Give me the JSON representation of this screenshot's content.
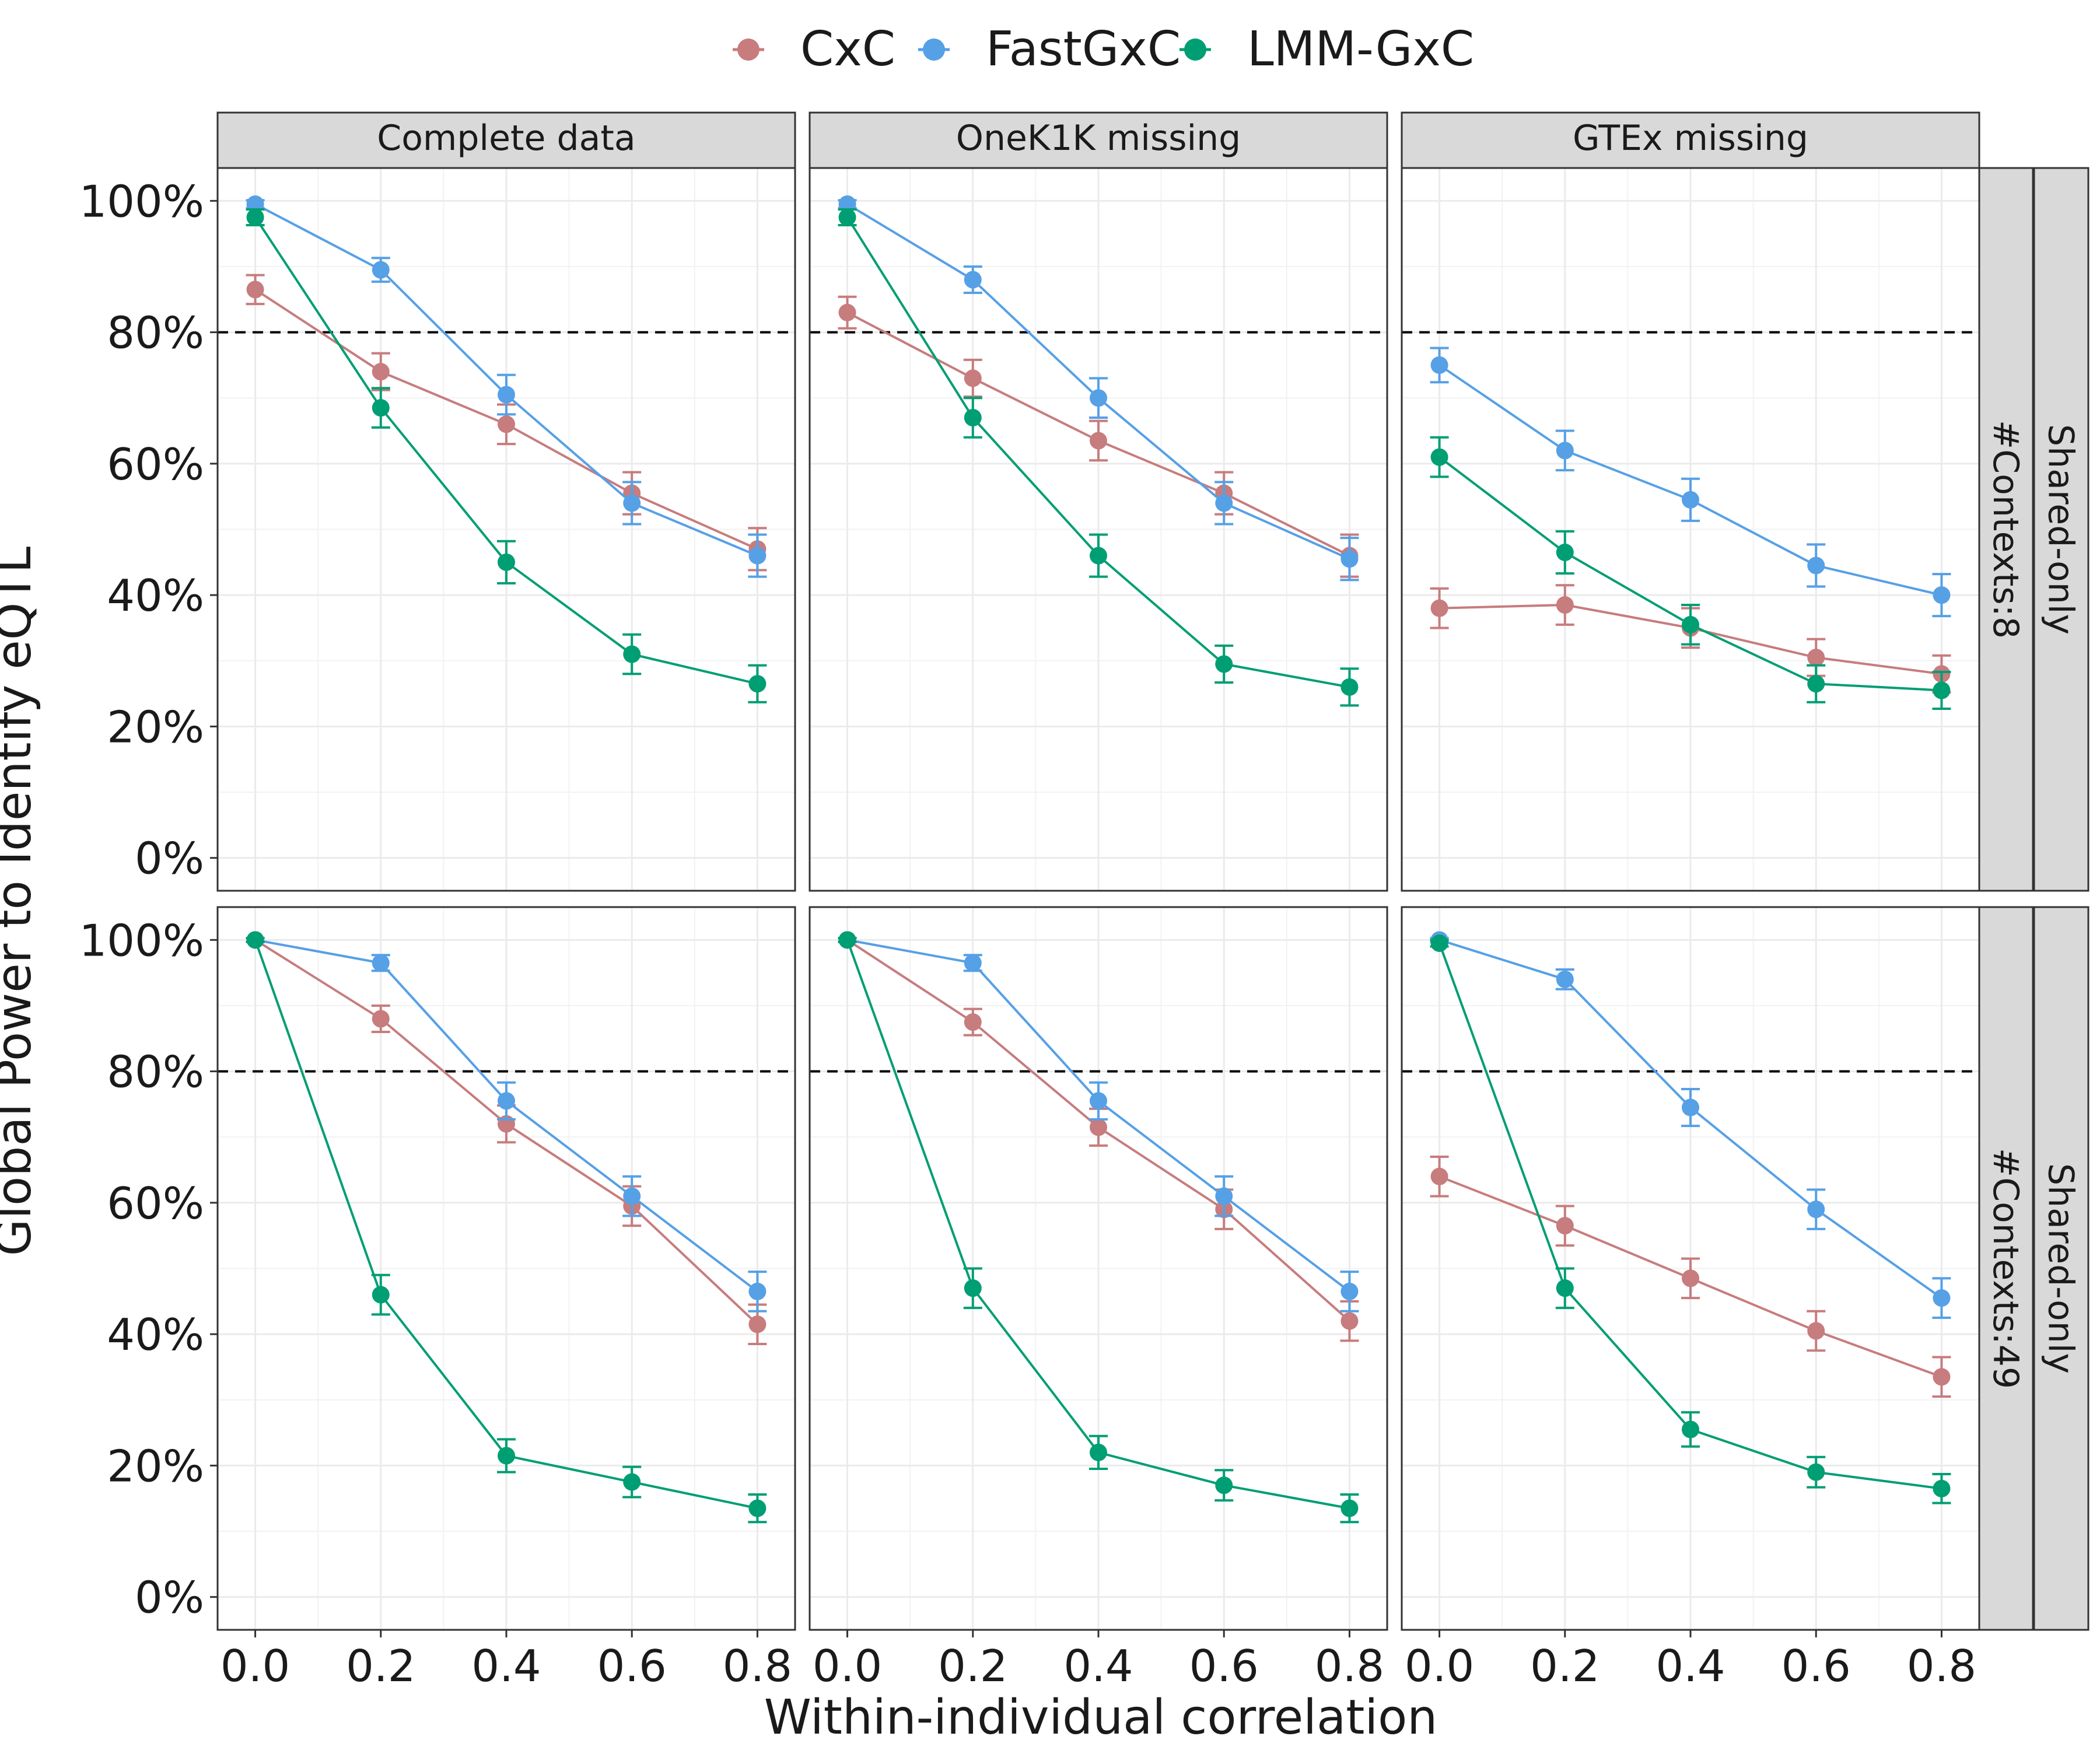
{
  "chart_data": {
    "type": "line",
    "xlabel": "Within-individual correlation",
    "ylabel": "Global Power to Identify eQTL",
    "x": [
      0.0,
      0.2,
      0.4,
      0.6,
      0.8
    ],
    "x_tick_labels": [
      "0.0",
      "0.2",
      "0.4",
      "0.6",
      "0.8"
    ],
    "y_tick_labels": [
      "0%",
      "20%",
      "40%",
      "60%",
      "80%",
      "100%"
    ],
    "y_ticks": [
      0,
      20,
      40,
      60,
      80,
      100
    ],
    "ylim": [
      -5,
      105
    ],
    "xlim": [
      -0.06,
      0.86
    ],
    "reference_line": 80,
    "grid": true,
    "legend_position": "top",
    "legend": [
      {
        "name": "CxC",
        "color": "#C77C7D"
      },
      {
        "name": "FastGxC",
        "color": "#56A0E6"
      },
      {
        "name": "LMM-GxC",
        "color": "#009E73"
      }
    ],
    "columns": [
      "Complete data",
      "OneK1K missing",
      "GTEx missing"
    ],
    "rows": [
      {
        "label_inner": "#Contexts:8",
        "label_outer": "Shared-only"
      },
      {
        "label_inner": "#Contexts:49",
        "label_outer": "Shared-only"
      }
    ],
    "panels": [
      {
        "row": 0,
        "col": 0,
        "series": [
          {
            "name": "CxC",
            "values": [
              86.5,
              74,
              66,
              55.5,
              47
            ],
            "err": [
              2.2,
              2.8,
              3,
              3.2,
              3.2
            ]
          },
          {
            "name": "FastGxC",
            "values": [
              99.5,
              89.5,
              70.5,
              54,
              46
            ],
            "err": [
              0.6,
              1.8,
              3,
              3.2,
              3.2
            ]
          },
          {
            "name": "LMM-GxC",
            "values": [
              97.5,
              68.5,
              45,
              31,
              26.5
            ],
            "err": [
              1.2,
              3,
              3.2,
              3,
              2.8
            ]
          }
        ]
      },
      {
        "row": 0,
        "col": 1,
        "series": [
          {
            "name": "CxC",
            "values": [
              83,
              73,
              63.5,
              55.5,
              46
            ],
            "err": [
              2.4,
              2.8,
              3,
              3.2,
              3.2
            ]
          },
          {
            "name": "FastGxC",
            "values": [
              99.5,
              88,
              70,
              54,
              45.5
            ],
            "err": [
              0.6,
              2,
              3,
              3.2,
              3.2
            ]
          },
          {
            "name": "LMM-GxC",
            "values": [
              97.5,
              67,
              46,
              29.5,
              26
            ],
            "err": [
              1.2,
              3,
              3.2,
              2.8,
              2.8
            ]
          }
        ]
      },
      {
        "row": 0,
        "col": 2,
        "series": [
          {
            "name": "CxC",
            "values": [
              38,
              38.5,
              35,
              30.5,
              28
            ],
            "err": [
              3,
              3,
              3,
              2.8,
              2.8
            ]
          },
          {
            "name": "FastGxC",
            "values": [
              75,
              62,
              54.5,
              44.5,
              40
            ],
            "err": [
              2.6,
              3,
              3.2,
              3.2,
              3.2
            ]
          },
          {
            "name": "LMM-GxC",
            "values": [
              61,
              46.5,
              35.5,
              26.5,
              25.5
            ],
            "err": [
              3,
              3.2,
              3,
              2.8,
              2.8
            ]
          }
        ]
      },
      {
        "row": 1,
        "col": 0,
        "series": [
          {
            "name": "CxC",
            "values": [
              100,
              88,
              72,
              59.5,
              41.5
            ],
            "err": [
              0.3,
              2,
              2.8,
              3,
              3
            ]
          },
          {
            "name": "FastGxC",
            "values": [
              100,
              96.5,
              75.5,
              61,
              46.5
            ],
            "err": [
              0.3,
              1.2,
              2.8,
              3,
              3
            ]
          },
          {
            "name": "LMM-GxC",
            "values": [
              100,
              46,
              21.5,
              17.5,
              13.5
            ],
            "err": [
              0.3,
              3,
              2.5,
              2.3,
              2.1
            ]
          }
        ]
      },
      {
        "row": 1,
        "col": 1,
        "series": [
          {
            "name": "CxC",
            "values": [
              100,
              87.5,
              71.5,
              59,
              42
            ],
            "err": [
              0.3,
              2,
              2.8,
              3,
              3
            ]
          },
          {
            "name": "FastGxC",
            "values": [
              100,
              96.5,
              75.5,
              61,
              46.5
            ],
            "err": [
              0.3,
              1.2,
              2.8,
              3,
              3
            ]
          },
          {
            "name": "LMM-GxC",
            "values": [
              100,
              47,
              22,
              17,
              13.5
            ],
            "err": [
              0.3,
              3,
              2.5,
              2.3,
              2.1
            ]
          }
        ]
      },
      {
        "row": 1,
        "col": 2,
        "series": [
          {
            "name": "CxC",
            "values": [
              64,
              56.5,
              48.5,
              40.5,
              33.5
            ],
            "err": [
              3,
              3,
              3,
              3,
              3
            ]
          },
          {
            "name": "FastGxC",
            "values": [
              100,
              94,
              74.5,
              59,
              45.5
            ],
            "err": [
              0.3,
              1.5,
              2.8,
              3,
              3
            ]
          },
          {
            "name": "LMM-GxC",
            "values": [
              99.5,
              47,
              25.5,
              19,
              16.5
            ],
            "err": [
              0.5,
              3,
              2.6,
              2.3,
              2.2
            ]
          }
        ]
      }
    ]
  }
}
